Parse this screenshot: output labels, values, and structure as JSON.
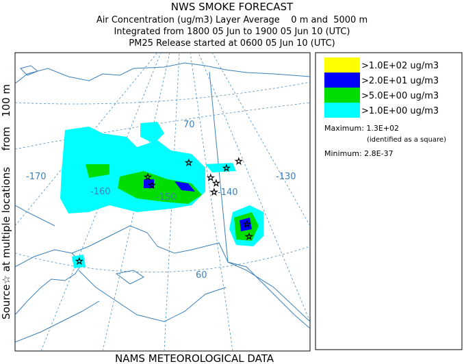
{
  "header": {
    "title": "NWS SMOKE FORECAST",
    "lines": [
      "Air Concentration (ug/m3) Layer Average    0 m and  5000 m",
      "Integrated from 1800 05 Jun to 1900 05 Jun 10 (UTC)",
      "PM25 Release started at 0600 05 Jun 10 (UTC)"
    ]
  },
  "side_label": "Source☆ at multiple locations     from   100 m",
  "footer": "NAMS METEOROLOGICAL DATA",
  "map": {
    "grid_labels": [
      "70",
      "-170",
      "-160",
      "-150",
      "-140",
      "-130",
      "60"
    ]
  },
  "legend": {
    "items": [
      {
        "label": ">1.0E+02 ug/m3",
        "color": "#ffff00"
      },
      {
        "label": ">2.0E+01 ug/m3",
        "color": "#0000ff"
      },
      {
        "label": ">5.0E+00 ug/m3",
        "color": "#00dd00"
      },
      {
        "label": ">1.0E+00 ug/m3",
        "color": "#00ffff"
      }
    ],
    "maximum": "Maximum: 1.3E+02",
    "maximum_note": "(identified as a square)",
    "minimum": "Minimum: 2.8E-37"
  }
}
